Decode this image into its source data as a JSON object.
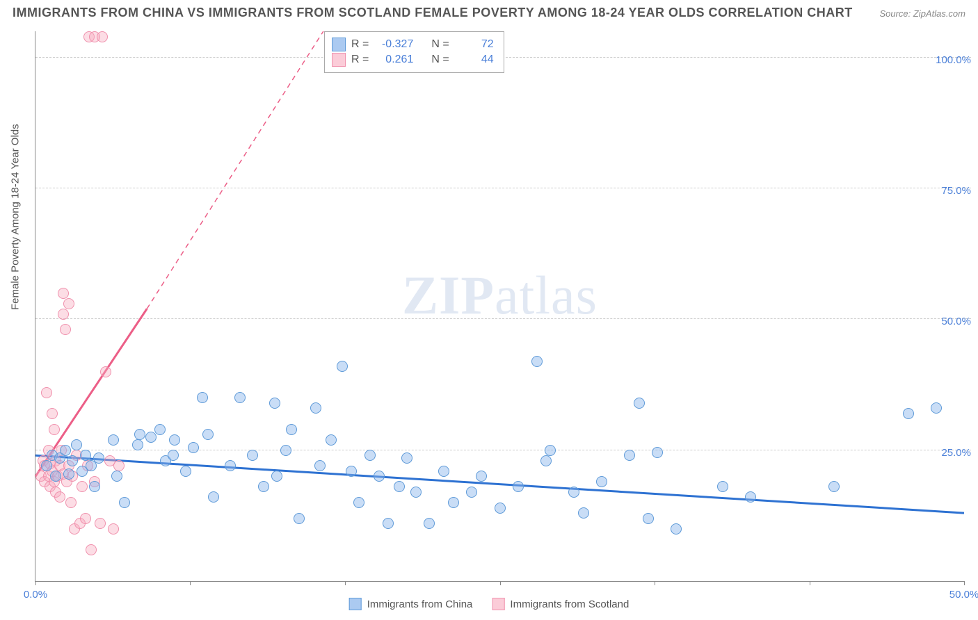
{
  "header": {
    "title": "IMMIGRANTS FROM CHINA VS IMMIGRANTS FROM SCOTLAND FEMALE POVERTY AMONG 18-24 YEAR OLDS CORRELATION CHART",
    "source_prefix": "Source: ",
    "source": "ZipAtlas.com"
  },
  "axes": {
    "y_label": "Female Poverty Among 18-24 Year Olds",
    "x_min": 0,
    "x_max": 50,
    "y_min": 0,
    "y_max": 105,
    "y_ticks": [
      25,
      50,
      75,
      100
    ],
    "y_tick_labels": [
      "25.0%",
      "50.0%",
      "75.0%",
      "100.0%"
    ],
    "x_ticks": [
      0,
      8.33,
      16.67,
      25,
      33.33,
      41.67,
      50
    ],
    "x_tick_labels": {
      "0": "0.0%",
      "50": "50.0%"
    }
  },
  "grid": {
    "color": "#cccccc",
    "dash": true
  },
  "colors": {
    "blue_fill": "rgba(135,180,235,0.45)",
    "blue_stroke": "#5e9ad8",
    "blue_line": "#2e72d2",
    "pink_fill": "rgba(248,170,190,0.4)",
    "pink_stroke": "#f091ad",
    "pink_line": "#ec5e87",
    "axis_text": "#4a7fd8",
    "title_text": "#555555",
    "background": "#ffffff"
  },
  "legend_box": {
    "rows": [
      {
        "series": "blue",
        "r_label": "R =",
        "r_value": "-0.327",
        "n_label": "N =",
        "n_value": "72"
      },
      {
        "series": "pink",
        "r_label": "R =",
        "r_value": "0.261",
        "n_label": "N =",
        "n_value": "44"
      }
    ]
  },
  "bottom_legend": {
    "items": [
      {
        "series": "blue",
        "label": "Immigrants from China"
      },
      {
        "series": "pink",
        "label": "Immigrants from Scotland"
      }
    ]
  },
  "watermark": {
    "zip": "ZIP",
    "atlas": "atlas"
  },
  "trend_lines": {
    "blue": {
      "x1": 0,
      "y1": 24,
      "x2": 50,
      "y2": 13,
      "dash": false
    },
    "pink_solid": {
      "x1": 0,
      "y1": 20,
      "x2": 6,
      "y2": 52
    },
    "pink_dash": {
      "x1": 6,
      "y1": 52,
      "x2": 15.5,
      "y2": 105
    }
  },
  "series": {
    "blue": [
      [
        0.6,
        22
      ],
      [
        0.9,
        24
      ],
      [
        1.1,
        20
      ],
      [
        1.3,
        23.5
      ],
      [
        1.6,
        25
      ],
      [
        1.8,
        20.5
      ],
      [
        2.0,
        23
      ],
      [
        2.2,
        26
      ],
      [
        2.5,
        21
      ],
      [
        2.7,
        24
      ],
      [
        3.0,
        22
      ],
      [
        3.2,
        18
      ],
      [
        3.4,
        23.5
      ],
      [
        4.2,
        27
      ],
      [
        4.4,
        20
      ],
      [
        4.8,
        15
      ],
      [
        5.5,
        26
      ],
      [
        5.6,
        28
      ],
      [
        6.2,
        27.5
      ],
      [
        6.7,
        29
      ],
      [
        7.0,
        23
      ],
      [
        7.4,
        24
      ],
      [
        7.5,
        27
      ],
      [
        8.1,
        21
      ],
      [
        8.5,
        25.5
      ],
      [
        9.0,
        35
      ],
      [
        9.3,
        28
      ],
      [
        9.6,
        16
      ],
      [
        10.5,
        22
      ],
      [
        11.0,
        35
      ],
      [
        11.7,
        24
      ],
      [
        12.3,
        18
      ],
      [
        12.9,
        34
      ],
      [
        13.0,
        20
      ],
      [
        13.5,
        25
      ],
      [
        13.8,
        29
      ],
      [
        14.2,
        12
      ],
      [
        15.1,
        33
      ],
      [
        15.3,
        22
      ],
      [
        15.9,
        27
      ],
      [
        16.5,
        41
      ],
      [
        17.0,
        21
      ],
      [
        17.4,
        15
      ],
      [
        18.0,
        24
      ],
      [
        18.5,
        20
      ],
      [
        19.0,
        11
      ],
      [
        19.6,
        18
      ],
      [
        20.0,
        23.5
      ],
      [
        20.5,
        17
      ],
      [
        21.2,
        11
      ],
      [
        22.0,
        21
      ],
      [
        22.5,
        15
      ],
      [
        23.5,
        17
      ],
      [
        24.0,
        20
      ],
      [
        25.0,
        14
      ],
      [
        26.0,
        18
      ],
      [
        27.0,
        42
      ],
      [
        27.5,
        23
      ],
      [
        27.7,
        25
      ],
      [
        29.0,
        17
      ],
      [
        29.5,
        13
      ],
      [
        30.5,
        19
      ],
      [
        32.0,
        24
      ],
      [
        32.5,
        34
      ],
      [
        33.0,
        12
      ],
      [
        33.5,
        24.5
      ],
      [
        34.5,
        10
      ],
      [
        37.0,
        18
      ],
      [
        38.5,
        16
      ],
      [
        43.0,
        18
      ],
      [
        47.0,
        32
      ],
      [
        48.5,
        33
      ]
    ],
    "pink": [
      [
        0.3,
        20
      ],
      [
        0.4,
        23
      ],
      [
        0.5,
        19
      ],
      [
        0.5,
        22
      ],
      [
        0.6,
        36
      ],
      [
        0.7,
        20
      ],
      [
        0.7,
        25
      ],
      [
        0.8,
        18
      ],
      [
        0.8,
        22.5
      ],
      [
        0.9,
        32
      ],
      [
        0.9,
        21
      ],
      [
        1.0,
        19
      ],
      [
        1.0,
        29
      ],
      [
        1.1,
        17
      ],
      [
        1.1,
        23
      ],
      [
        1.2,
        20
      ],
      [
        1.3,
        22
      ],
      [
        1.3,
        16
      ],
      [
        1.4,
        25
      ],
      [
        1.5,
        20.5
      ],
      [
        1.5,
        55
      ],
      [
        1.5,
        51
      ],
      [
        1.6,
        48
      ],
      [
        1.7,
        19
      ],
      [
        1.8,
        22
      ],
      [
        1.8,
        53
      ],
      [
        1.9,
        15
      ],
      [
        2.0,
        20
      ],
      [
        2.1,
        10
      ],
      [
        2.2,
        24
      ],
      [
        2.4,
        11
      ],
      [
        2.5,
        18
      ],
      [
        2.7,
        12
      ],
      [
        2.8,
        22
      ],
      [
        3.0,
        6
      ],
      [
        3.2,
        19
      ],
      [
        3.5,
        11
      ],
      [
        3.8,
        40
      ],
      [
        4.0,
        23
      ],
      [
        4.2,
        10
      ],
      [
        4.5,
        22
      ],
      [
        2.9,
        104
      ],
      [
        3.2,
        104
      ],
      [
        3.6,
        104
      ]
    ]
  }
}
